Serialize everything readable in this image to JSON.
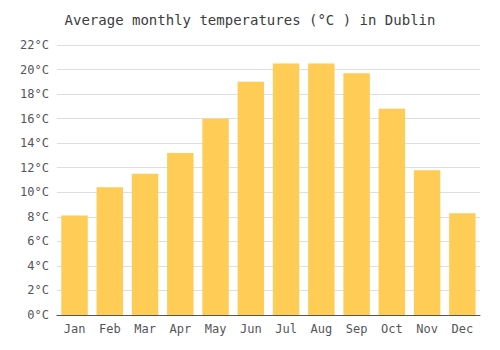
{
  "chart_data": {
    "type": "bar",
    "title": "Average monthly temperatures (°C ) in Dublin",
    "categories": [
      "Jan",
      "Feb",
      "Mar",
      "Apr",
      "May",
      "Jun",
      "Jul",
      "Aug",
      "Sep",
      "Oct",
      "Nov",
      "Dec"
    ],
    "values": [
      8.1,
      10.4,
      11.5,
      13.2,
      16.0,
      19.0,
      20.5,
      20.5,
      19.7,
      16.8,
      11.8,
      8.3
    ],
    "color": "#FFCC55",
    "ylim": [
      0,
      22
    ],
    "yticks": [
      {
        "value": 0,
        "label": "0°C"
      },
      {
        "value": 2,
        "label": "2°C"
      },
      {
        "value": 4,
        "label": "4°C"
      },
      {
        "value": 6,
        "label": "6°C"
      },
      {
        "value": 8,
        "label": "8°C"
      },
      {
        "value": 10,
        "label": "10°C"
      },
      {
        "value": 12,
        "label": "12°C"
      },
      {
        "value": 14,
        "label": "14°C"
      },
      {
        "value": 16,
        "label": "16°C"
      },
      {
        "value": 18,
        "label": "18°C"
      },
      {
        "value": 20,
        "label": "20°C"
      },
      {
        "value": 22,
        "label": "22°C"
      }
    ],
    "grid": true
  }
}
